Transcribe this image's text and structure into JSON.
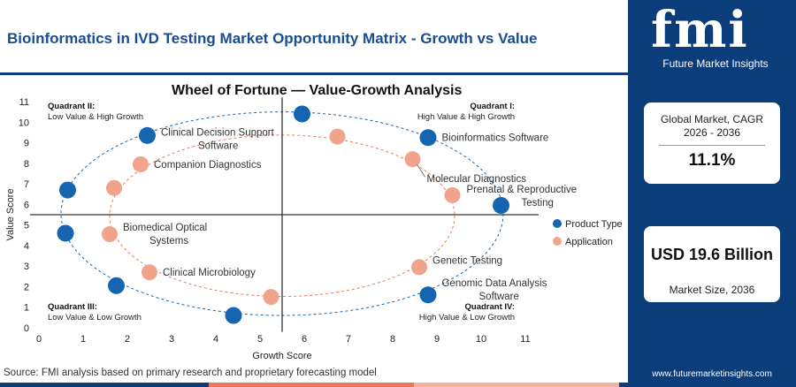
{
  "header": {
    "title": "Bioinformatics in IVD Testing Market Opportunity Matrix - Growth vs Value"
  },
  "colors": {
    "brand": "#0a3d7a",
    "product_type": "#1565b0",
    "application": "#f0a48c",
    "footer": [
      "#0a3d7a",
      "#e8795a",
      "#f3b29c",
      "#0a3d7a"
    ]
  },
  "chart_data": {
    "type": "scatter",
    "title": "Wheel of Fortune — Value-Growth Analysis",
    "xlabel": "Growth Score",
    "ylabel": "Value Score",
    "xlim": [
      0,
      11
    ],
    "ylim": [
      0,
      11
    ],
    "xticks": [
      0,
      1,
      2,
      3,
      4,
      5,
      6,
      7,
      8,
      9,
      10,
      11
    ],
    "yticks": [
      0,
      1,
      2,
      3,
      4,
      5,
      6,
      7,
      8,
      9,
      10,
      11
    ],
    "divider": {
      "x": 5.5,
      "y": 5.5
    },
    "legend_position": "right",
    "quadrants": [
      {
        "name": "Quadrant II:",
        "desc": "Low Value & High Growth",
        "position": "top-left"
      },
      {
        "name": "Quadrant I:",
        "desc": "High Value & High Growth",
        "position": "top-right"
      },
      {
        "name": "Quadrant III:",
        "desc": "Low Value & Low Growth",
        "position": "bottom-left"
      },
      {
        "name": "Quadrant IV:",
        "desc": "High Value & Low Growth",
        "position": "bottom-right"
      }
    ],
    "series": [
      {
        "name": "Product Type",
        "color": "#1565b0",
        "points": [
          {
            "x": 5.95,
            "y": 10.4,
            "label": ""
          },
          {
            "x": 8.8,
            "y": 9.25,
            "label": "Bioinformatics Software",
            "anchor": "right"
          },
          {
            "x": 10.45,
            "y": 5.95,
            "label": ""
          },
          {
            "x": 8.8,
            "y": 1.6,
            "label": "Genomic Data Analysis Software",
            "anchor": "right"
          },
          {
            "x": 4.4,
            "y": 0.6,
            "label": ""
          },
          {
            "x": 1.75,
            "y": 2.05,
            "label": ""
          },
          {
            "x": 0.6,
            "y": 4.6,
            "label": ""
          },
          {
            "x": 0.65,
            "y": 6.7,
            "label": ""
          },
          {
            "x": 2.45,
            "y": 9.35,
            "label": "Clinical Decision Support Software",
            "anchor": "right"
          }
        ]
      },
      {
        "name": "Application",
        "color": "#f0a48c",
        "points": [
          {
            "x": 6.75,
            "y": 9.3,
            "label": ""
          },
          {
            "x": 8.45,
            "y": 8.2,
            "label": "Molecular Diagnostics",
            "anchor": "leader"
          },
          {
            "x": 9.35,
            "y": 6.45,
            "label": "Prenatal & Reproductive Testing",
            "anchor": "right-high"
          },
          {
            "x": 8.6,
            "y": 2.95,
            "label": "Genetic Testing",
            "anchor": "right-high"
          },
          {
            "x": 5.25,
            "y": 1.5,
            "label": ""
          },
          {
            "x": 2.5,
            "y": 2.7,
            "label": "Clinical Microbiology",
            "anchor": "right"
          },
          {
            "x": 1.6,
            "y": 4.55,
            "label": "Biomedical Optical Systems",
            "anchor": "right-high"
          },
          {
            "x": 1.7,
            "y": 6.8,
            "label": ""
          },
          {
            "x": 2.3,
            "y": 7.95,
            "label": "Companion Diagnostics",
            "anchor": "right"
          }
        ]
      }
    ]
  },
  "sidebar": {
    "logo": "fmi",
    "logo_sub": "Future Market Insights",
    "cagr": {
      "label": "Global Market, CAGR 2026 - 2036",
      "value": "11.1%"
    },
    "size": {
      "value": "USD 19.6 Billion",
      "label": "Market Size, 2036"
    },
    "site": "www.futuremarketinsights.com"
  },
  "source": "Source: FMI analysis based on primary research and proprietary forecasting model"
}
